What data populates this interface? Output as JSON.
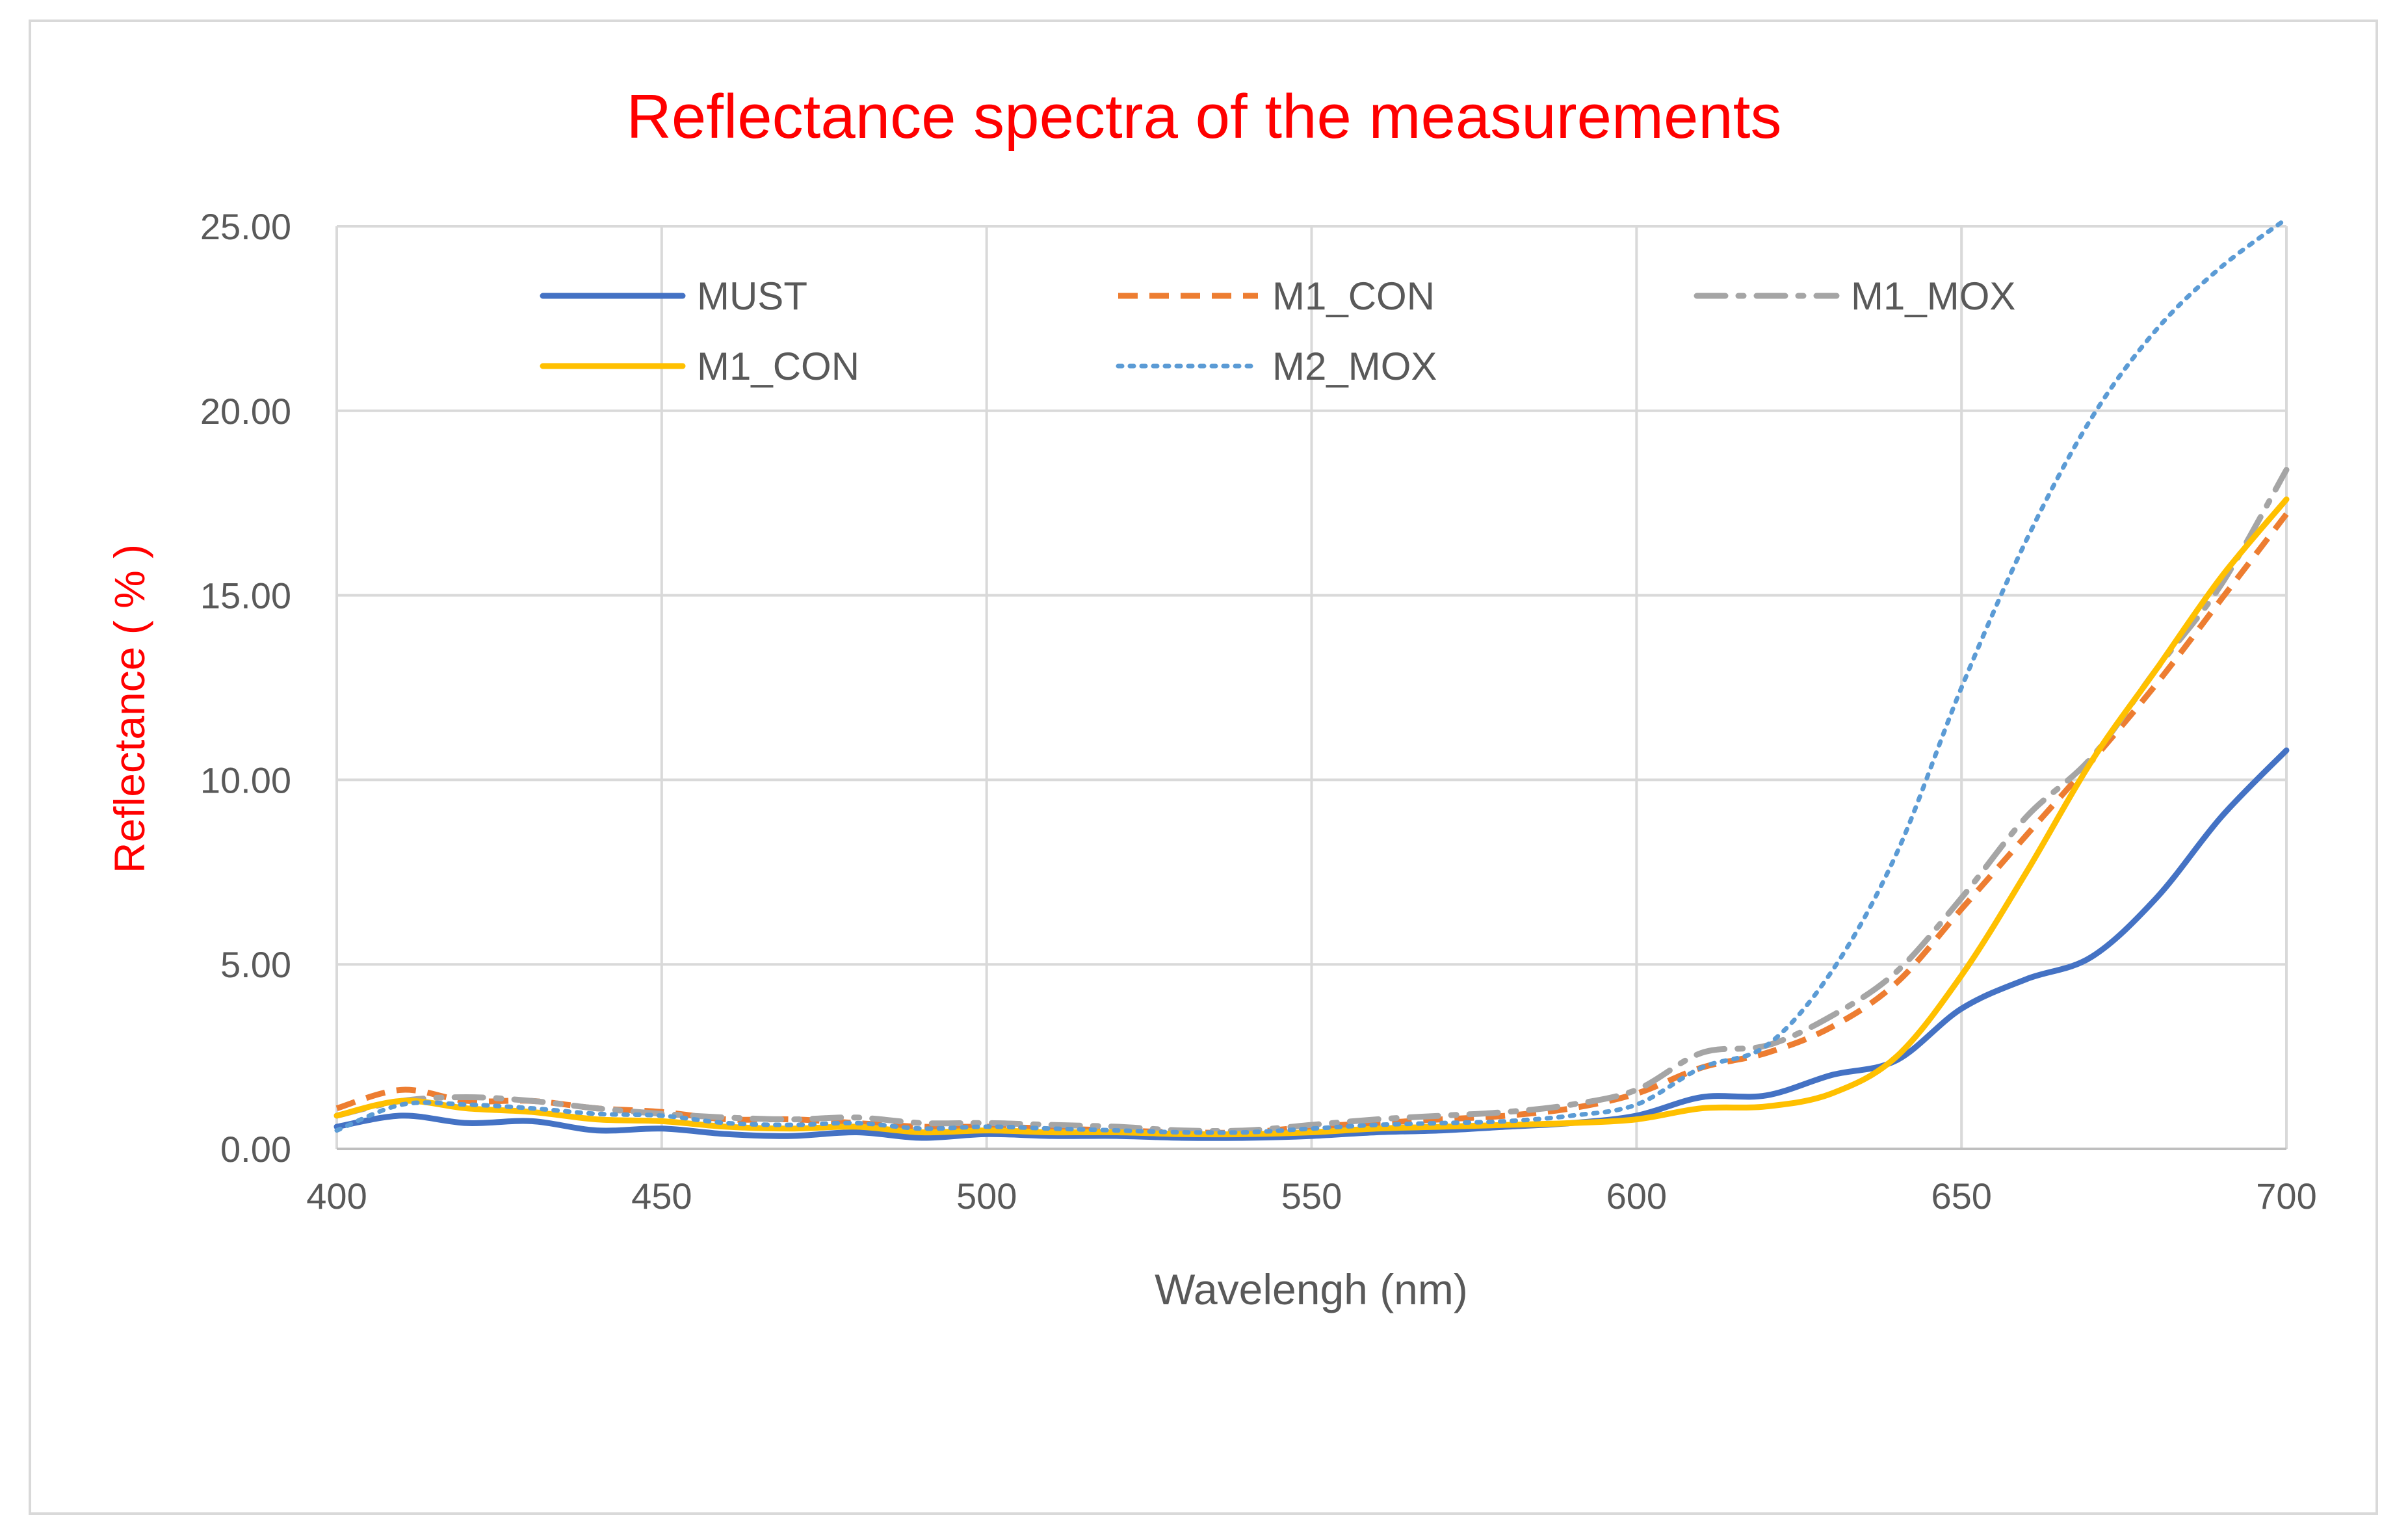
{
  "chart_data": {
    "type": "line",
    "title": "Reflectance spectra of the measurements",
    "xlabel": "Wavelengh (nm)",
    "ylabel": "Reflectance ( % )",
    "xlim": [
      400,
      700
    ],
    "ylim": [
      0,
      25
    ],
    "xticks": [
      "400",
      "450",
      "500",
      "550",
      "600",
      "650",
      "700"
    ],
    "yticks": [
      "0.00",
      "5.00",
      "10.00",
      "15.00",
      "20.00",
      "25.00"
    ],
    "grid": true,
    "legend_position": "top-inside",
    "x": [
      400,
      410,
      420,
      430,
      440,
      450,
      460,
      470,
      480,
      490,
      500,
      510,
      520,
      530,
      540,
      550,
      560,
      570,
      580,
      590,
      600,
      610,
      620,
      630,
      640,
      650,
      660,
      670,
      680,
      690,
      700
    ],
    "series": [
      {
        "name": "MUST",
        "color": "#4472c4",
        "style": "solid",
        "values": [
          0.6,
          0.9,
          0.7,
          0.75,
          0.5,
          0.55,
          0.4,
          0.35,
          0.45,
          0.3,
          0.4,
          0.35,
          0.35,
          0.3,
          0.3,
          0.35,
          0.45,
          0.5,
          0.6,
          0.7,
          0.9,
          1.4,
          1.45,
          2.0,
          2.4,
          3.8,
          4.6,
          5.2,
          6.8,
          9.0,
          10.8
        ]
      },
      {
        "name": "M1_CON",
        "color": "#ed7d31",
        "style": "dashed",
        "values": [
          1.1,
          1.6,
          1.3,
          1.3,
          1.1,
          1.0,
          0.8,
          0.8,
          0.7,
          0.6,
          0.6,
          0.55,
          0.5,
          0.45,
          0.45,
          0.6,
          0.7,
          0.8,
          0.9,
          1.1,
          1.5,
          2.2,
          2.6,
          3.3,
          4.5,
          6.5,
          8.5,
          10.5,
          12.6,
          14.9,
          17.2
        ]
      },
      {
        "name": "M1_MOX",
        "color": "#a5a5a5",
        "style": "dashdot",
        "values": [
          0.9,
          1.3,
          1.4,
          1.3,
          1.1,
          0.95,
          0.85,
          0.8,
          0.85,
          0.7,
          0.7,
          0.65,
          0.6,
          0.5,
          0.5,
          0.65,
          0.8,
          0.9,
          1.0,
          1.2,
          1.6,
          2.6,
          2.8,
          3.6,
          4.8,
          6.8,
          9.0,
          10.6,
          13.0,
          15.3,
          18.4
        ]
      },
      {
        "name": "M1_CON",
        "color": "#ffc000",
        "style": "solid",
        "values": [
          0.9,
          1.3,
          1.1,
          1.0,
          0.8,
          0.75,
          0.6,
          0.55,
          0.6,
          0.45,
          0.5,
          0.45,
          0.45,
          0.4,
          0.4,
          0.45,
          0.55,
          0.6,
          0.65,
          0.7,
          0.8,
          1.1,
          1.15,
          1.5,
          2.5,
          4.7,
          7.5,
          10.5,
          13.0,
          15.5,
          17.6
        ]
      },
      {
        "name": "M2_MOX",
        "color": "#5b9bd5",
        "style": "dotted",
        "values": [
          0.5,
          1.2,
          1.2,
          1.1,
          0.95,
          0.9,
          0.7,
          0.65,
          0.7,
          0.55,
          0.6,
          0.55,
          0.5,
          0.45,
          0.45,
          0.55,
          0.65,
          0.7,
          0.75,
          0.9,
          1.2,
          2.2,
          2.8,
          4.8,
          8.0,
          12.5,
          16.5,
          19.8,
          22.2,
          23.9,
          25.2
        ]
      }
    ]
  }
}
